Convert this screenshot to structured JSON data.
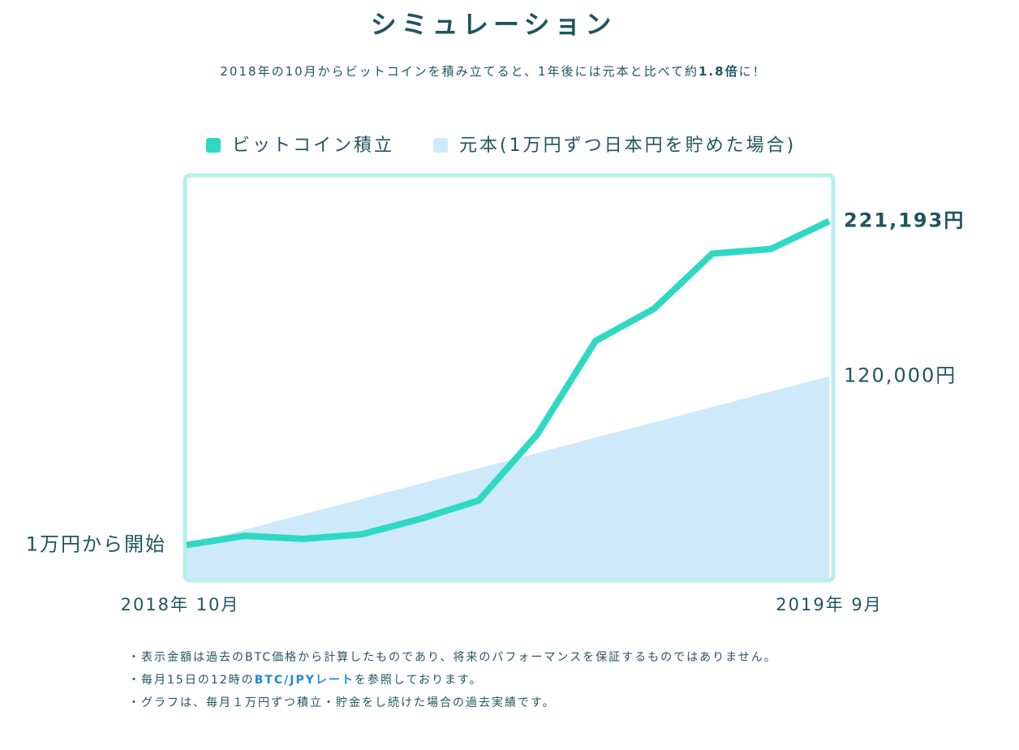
{
  "chart_data": {
    "type": "line",
    "title": "シミュレーション",
    "subtitle": {
      "before": "2018年の10月からビットコインを積み立てると、1年後には元本と比べて約",
      "emphasis": "1.8倍",
      "after": "に！"
    },
    "categories": [
      "2018年 10月",
      null,
      null,
      null,
      null,
      null,
      null,
      null,
      null,
      null,
      null,
      "2019年 9月"
    ],
    "series": [
      {
        "name": "ビットコイン積立",
        "color": "#2fd8c3",
        "kind": "line",
        "values": [
          10000,
          16000,
          14000,
          17000,
          27000,
          39000,
          82000,
          143000,
          164000,
          200000,
          203000,
          221193
        ],
        "value_labels": [
          "1万円から開始",
          null,
          null,
          null,
          null,
          null,
          null,
          null,
          null,
          null,
          null,
          "221,193円"
        ]
      },
      {
        "name": "元本(1万円ずつ日本円を貯めた場合)",
        "color": "#cde9fa",
        "kind": "area",
        "values": [
          10000,
          20000,
          30000,
          40000,
          50000,
          60000,
          70000,
          80000,
          90000,
          100000,
          110000,
          120000
        ],
        "value_labels": [
          null,
          null,
          null,
          null,
          null,
          null,
          null,
          null,
          null,
          null,
          null,
          "120,000円"
        ]
      }
    ],
    "ylim": [
      -12000,
      250000
    ],
    "notes": [
      [
        {
          "text": "・表示金額は過去のBTC価格から計算したものであり、将来のパフォーマンスを保証するものではありません。"
        }
      ],
      [
        {
          "text": "・毎月15日の12時の"
        },
        {
          "text": "BTC/JPYレート",
          "link": true
        },
        {
          "text": "を参照しております。"
        }
      ],
      [
        {
          "text": "・グラフは、毎月１万円ずつ積立・貯金をし続けた場合の過去実績です。"
        }
      ]
    ]
  }
}
